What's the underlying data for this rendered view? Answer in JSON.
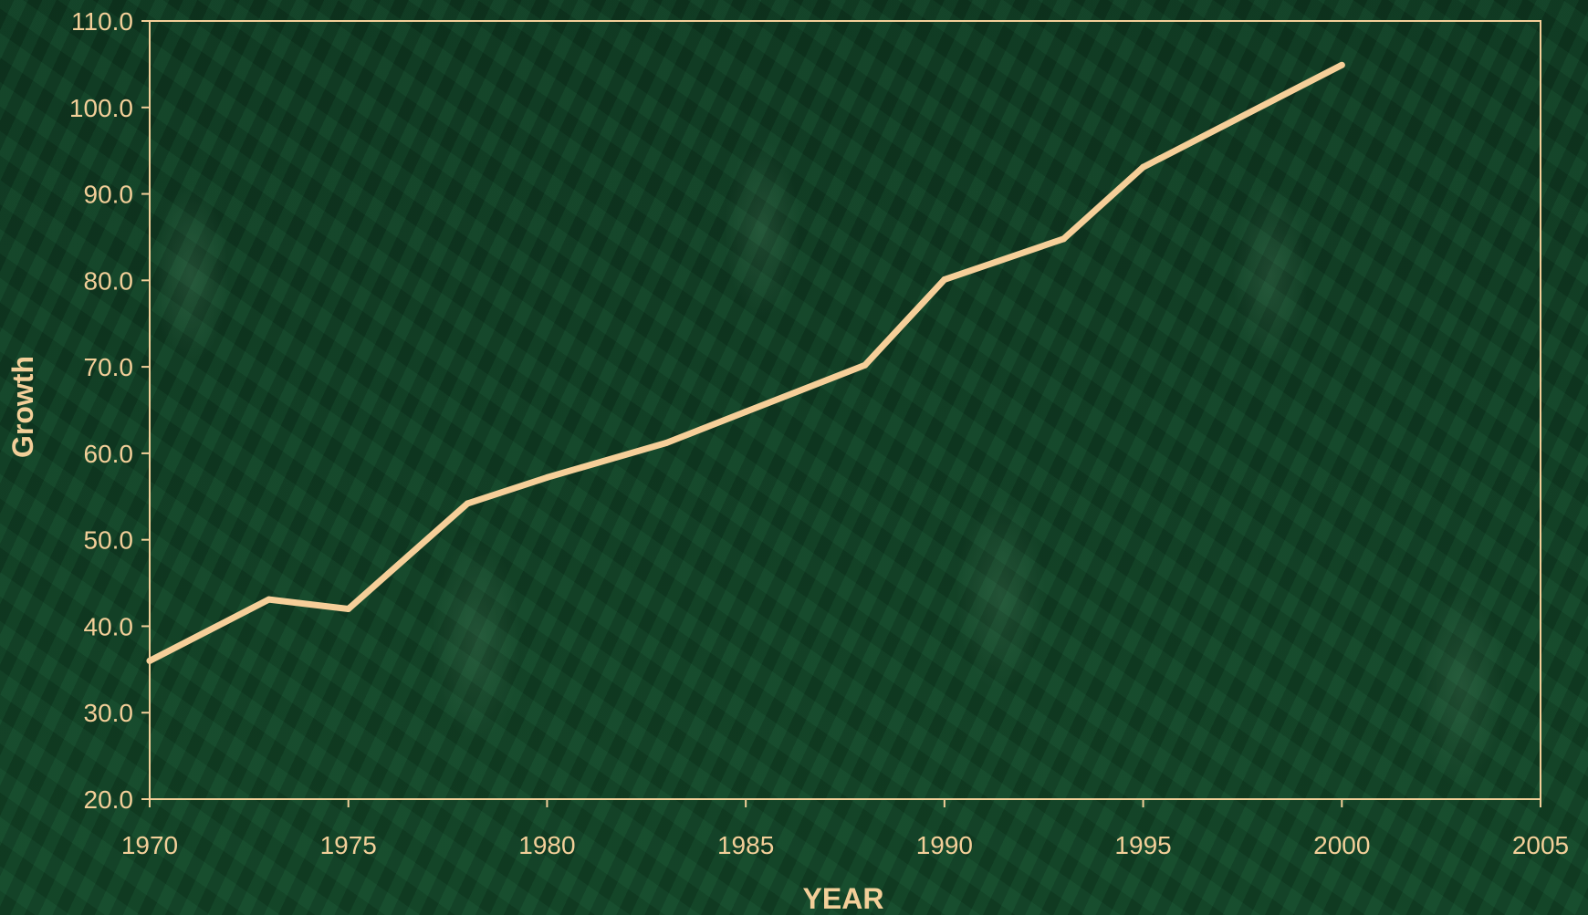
{
  "chart_data": {
    "type": "line",
    "title": "",
    "xlabel": "YEAR",
    "ylabel": "Growth",
    "xlim": [
      1970,
      2005
    ],
    "ylim": [
      20,
      110
    ],
    "x_ticks": [
      "1970",
      "1975",
      "1980",
      "1985",
      "1990",
      "1995",
      "2000",
      "2005"
    ],
    "y_ticks": [
      "20.0",
      "30.0",
      "40.0",
      "50.0",
      "60.0",
      "70.0",
      "80.0",
      "90.0",
      "100.0",
      "110.0"
    ],
    "grid": false,
    "legend": "none",
    "series": [
      {
        "x": [
          1970,
          1973,
          1975,
          1978,
          1980,
          1983,
          1985,
          1988,
          1990,
          1993,
          1995,
          2000
        ],
        "y": [
          36.0,
          43.1,
          42.0,
          54.2,
          57.2,
          61.2,
          64.8,
          70.2,
          80.1,
          84.8,
          93.1,
          104.9
        ]
      }
    ],
    "colors": {
      "line": "#f6cf99",
      "axis": "#f3cf99"
    }
  }
}
